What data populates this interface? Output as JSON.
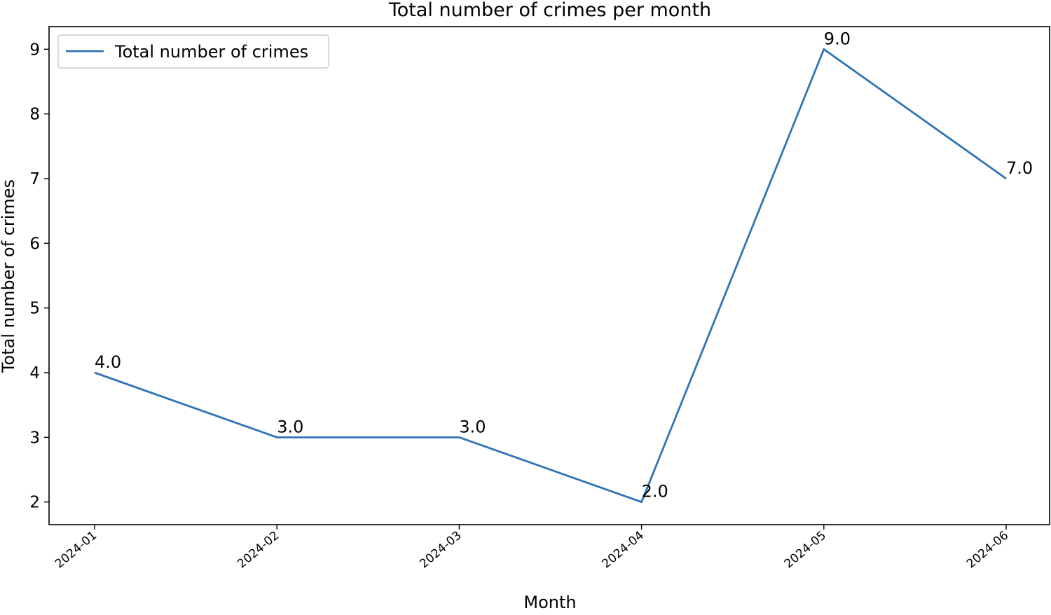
{
  "chart_data": {
    "type": "line",
    "title": "Total number of crimes per month",
    "xlabel": "Month",
    "ylabel": "Total number of crimes",
    "categories": [
      "2024-01",
      "2024-02",
      "2024-03",
      "2024-04",
      "2024-05",
      "2024-06"
    ],
    "series": [
      {
        "name": "Total number of crimes",
        "values": [
          4.0,
          3.0,
          3.0,
          2.0,
          9.0,
          7.0
        ],
        "color": "#2f74b5"
      }
    ],
    "data_labels": [
      "4.0",
      "3.0",
      "3.0",
      "2.0",
      "9.0",
      "7.0"
    ],
    "yticks": [
      2,
      3,
      4,
      5,
      6,
      7,
      8,
      9
    ],
    "ylim": [
      1.65,
      9.35
    ],
    "grid": false,
    "legend_position": "top-left"
  }
}
